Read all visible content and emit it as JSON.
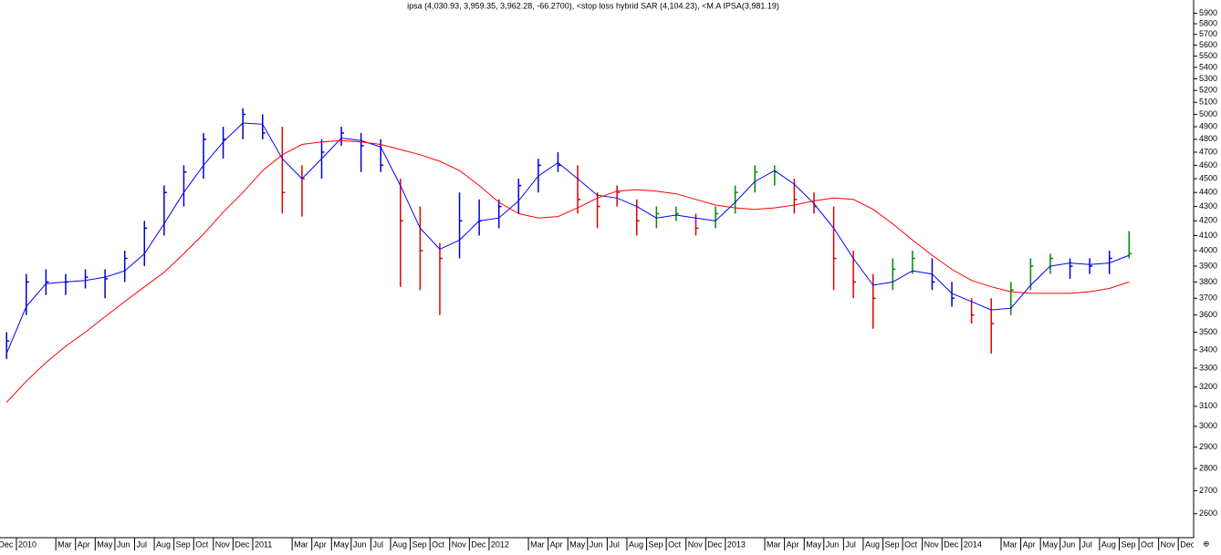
{
  "chart_data": {
    "type": "ohlc",
    "title": "ipsa (4,030.93, 3,959.35, 3,962.28, -66.2700), <stop loss hybrid SAR (4,104.23), <M.A IPSA(3,981.19)",
    "log_scale": true,
    "ylim": [
      2500,
      6030
    ],
    "yticks": [
      2600,
      2700,
      2800,
      2900,
      3000,
      3100,
      3200,
      3300,
      3400,
      3500,
      3600,
      3700,
      3800,
      3900,
      4000,
      4100,
      4200,
      4300,
      4400,
      4500,
      4600,
      4700,
      4800,
      4900,
      5000,
      5100,
      5200,
      5300,
      5400,
      5500,
      5600,
      5700,
      5800,
      5900
    ],
    "categories": [
      "Dec",
      "2010",
      null,
      "Mar",
      "Apr",
      "May",
      "Jun",
      "Jul",
      "Aug",
      "Sep",
      "Oct",
      "Nov",
      "Dec",
      "2011",
      null,
      "Mar",
      "Apr",
      "May",
      "Jun",
      "Jul",
      "Aug",
      "Sep",
      "Oct",
      "Nov",
      "Dec",
      "2012",
      null,
      "Mar",
      "Apr",
      "May",
      "Jun",
      "Jul",
      "Aug",
      "Sep",
      "Oct",
      "Nov",
      "Dec",
      "2013",
      null,
      "Mar",
      "Apr",
      "May",
      "Jun",
      "Jul",
      "Aug",
      "Sep",
      "Oct",
      "Nov",
      "Dec",
      "2014",
      null,
      "Mar",
      "Apr",
      "May",
      "Jun",
      "Jul",
      "Aug",
      "Sep",
      "Oct",
      "Nov",
      "Dec"
    ],
    "high": [
      3500,
      3850,
      3880,
      3850,
      3880,
      3880,
      4000,
      4200,
      4450,
      4600,
      4850,
      4900,
      5050,
      5000,
      4900,
      4600,
      4800,
      4900,
      4850,
      4800,
      4500,
      4300,
      4050,
      4400,
      4350,
      4350,
      4500,
      4650,
      4700,
      4600,
      4400,
      4450,
      4350,
      4300,
      4300,
      4250,
      4300,
      4450,
      4600,
      4600,
      4500,
      4400,
      4300,
      4000,
      3850,
      3950,
      4000,
      3950,
      3800,
      3700,
      3700,
      3800,
      3950,
      3980,
      3950,
      3950,
      4000,
      4130,
      null,
      null,
      null
    ],
    "low": [
      3350,
      3600,
      3720,
      3720,
      3760,
      3700,
      3800,
      3900,
      4100,
      4300,
      4500,
      4650,
      4800,
      4800,
      4250,
      4230,
      4500,
      4750,
      4550,
      4550,
      3770,
      3750,
      3600,
      3950,
      4100,
      4150,
      4250,
      4400,
      4550,
      4250,
      4150,
      4300,
      4100,
      4150,
      4200,
      4100,
      4150,
      4250,
      4400,
      4450,
      4250,
      4250,
      3750,
      3700,
      3520,
      3750,
      3850,
      3750,
      3650,
      3550,
      3380,
      3600,
      3750,
      3850,
      3820,
      3850,
      3850,
      3950,
      null,
      null,
      null
    ],
    "close": [
      3450,
      3800,
      3800,
      3800,
      3830,
      3820,
      3950,
      4150,
      4400,
      4550,
      4800,
      4800,
      5000,
      4850,
      4400,
      4500,
      4700,
      4850,
      4750,
      4600,
      4200,
      4000,
      3950,
      4200,
      4200,
      4300,
      4450,
      4600,
      4600,
      4350,
      4300,
      4400,
      4200,
      4250,
      4250,
      4150,
      4250,
      4400,
      4550,
      4550,
      4350,
      4300,
      3950,
      3800,
      3700,
      3880,
      3950,
      3800,
      3700,
      3600,
      3550,
      3750,
      3900,
      3950,
      3900,
      3900,
      3950,
      3980,
      null,
      null,
      null
    ],
    "bar_colors": [
      "#0000cc",
      "#0000cc",
      "#0000cc",
      "#0000cc",
      "#0000cc",
      "#0000cc",
      "#0000cc",
      "#0000cc",
      "#0000cc",
      "#0000cc",
      "#0000cc",
      "#0000cc",
      "#0000cc",
      "#0000cc",
      "#dd0000",
      "#dd0000",
      "#0000cc",
      "#0000cc",
      "#0000cc",
      "#0000cc",
      "#dd0000",
      "#dd0000",
      "#dd0000",
      "#0000cc",
      "#0000cc",
      "#0000cc",
      "#0000cc",
      "#0000cc",
      "#0000cc",
      "#dd0000",
      "#dd0000",
      "#dd0000",
      "#dd0000",
      "#008800",
      "#008800",
      "#dd0000",
      "#008800",
      "#008800",
      "#008800",
      "#008800",
      "#dd0000",
      "#dd0000",
      "#dd0000",
      "#dd0000",
      "#dd0000",
      "#008800",
      "#008800",
      "#0000cc",
      "#0000cc",
      "#dd0000",
      "#dd0000",
      "#008800",
      "#008800",
      "#008800",
      "#0000cc",
      "#0000cc",
      "#0000cc",
      "#008800",
      null,
      null,
      null
    ],
    "series": [
      {
        "color": "#0000ff",
        "values": [
          3380,
          3650,
          3790,
          3800,
          3810,
          3830,
          3870,
          3980,
          4180,
          4400,
          4600,
          4780,
          4930,
          4920,
          4650,
          4500,
          4650,
          4810,
          4790,
          4740,
          4450,
          4150,
          4010,
          4070,
          4200,
          4220,
          4340,
          4520,
          4620,
          4500,
          4380,
          4360,
          4300,
          4220,
          4240,
          4220,
          4200,
          4330,
          4480,
          4560,
          4460,
          4320,
          4150,
          3950,
          3780,
          3800,
          3870,
          3850,
          3730,
          3680,
          3630,
          3640,
          3780,
          3900,
          3920,
          3910,
          3920,
          3970,
          null,
          null,
          null
        ]
      },
      {
        "color": "#ff0000",
        "values": [
          3120,
          3230,
          3330,
          3420,
          3500,
          3590,
          3680,
          3770,
          3860,
          3980,
          4110,
          4260,
          4400,
          4560,
          4680,
          4760,
          4780,
          4790,
          4780,
          4760,
          4720,
          4680,
          4630,
          4560,
          4450,
          4330,
          4250,
          4220,
          4230,
          4290,
          4360,
          4410,
          4420,
          4410,
          4390,
          4350,
          4310,
          4290,
          4280,
          4290,
          4310,
          4340,
          4360,
          4350,
          4280,
          4180,
          4070,
          3970,
          3880,
          3810,
          3770,
          3740,
          3730,
          3730,
          3730,
          3740,
          3760,
          3800,
          null,
          null,
          null
        ]
      }
    ]
  }
}
